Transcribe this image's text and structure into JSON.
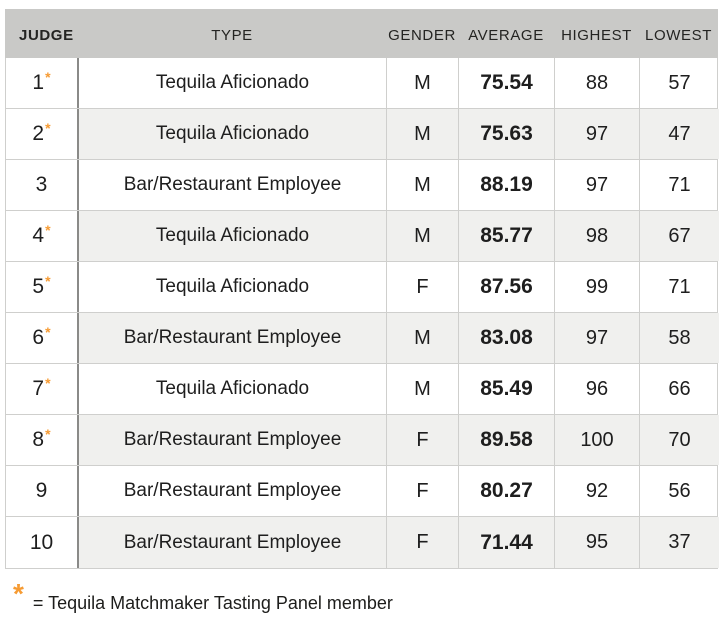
{
  "chart_data": {
    "type": "table",
    "columns": [
      {
        "key": "judge",
        "label": "JUDGE"
      },
      {
        "key": "type",
        "label": "TYPE"
      },
      {
        "key": "gender",
        "label": "GENDER"
      },
      {
        "key": "average",
        "label": "AVERAGE"
      },
      {
        "key": "highest",
        "label": "HIGHEST"
      },
      {
        "key": "lowest",
        "label": "LOWEST"
      }
    ],
    "rows": [
      {
        "judge": "1",
        "panel_member": true,
        "type": "Tequila Aficionado",
        "gender": "M",
        "average": "75.54",
        "highest": "88",
        "lowest": "57"
      },
      {
        "judge": "2",
        "panel_member": true,
        "type": "Tequila Aficionado",
        "gender": "M",
        "average": "75.63",
        "highest": "97",
        "lowest": "47"
      },
      {
        "judge": "3",
        "panel_member": false,
        "type": "Bar/Restaurant Employee",
        "gender": "M",
        "average": "88.19",
        "highest": "97",
        "lowest": "71"
      },
      {
        "judge": "4",
        "panel_member": true,
        "type": "Tequila Aficionado",
        "gender": "M",
        "average": "85.77",
        "highest": "98",
        "lowest": "67"
      },
      {
        "judge": "5",
        "panel_member": true,
        "type": "Tequila Aficionado",
        "gender": "F",
        "average": "87.56",
        "highest": "99",
        "lowest": "71"
      },
      {
        "judge": "6",
        "panel_member": true,
        "type": "Bar/Restaurant Employee",
        "gender": "M",
        "average": "83.08",
        "highest": "97",
        "lowest": "58"
      },
      {
        "judge": "7",
        "panel_member": true,
        "type": "Tequila Aficionado",
        "gender": "M",
        "average": "85.49",
        "highest": "96",
        "lowest": "66"
      },
      {
        "judge": "8",
        "panel_member": true,
        "type": "Bar/Restaurant Employee",
        "gender": "F",
        "average": "89.58",
        "highest": "100",
        "lowest": "70"
      },
      {
        "judge": "9",
        "panel_member": false,
        "type": "Bar/Restaurant Employee",
        "gender": "F",
        "average": "80.27",
        "highest": "92",
        "lowest": "56"
      },
      {
        "judge": "10",
        "panel_member": false,
        "type": "Bar/Restaurant Employee",
        "gender": "F",
        "average": "71.44",
        "highest": "95",
        "lowest": "37"
      }
    ],
    "panel_member_marker": "*"
  },
  "footnote": {
    "symbol": "*",
    "text": "= Tequila Matchmaker Tasting Panel member"
  },
  "colors": {
    "accent": "#f69b33",
    "header_bg": "#c9c9c7",
    "stripe_bg": "#f0f0ee",
    "border_light": "#cfcfcd",
    "border_dark": "#8a8a88",
    "text": "#1e1e1e"
  }
}
